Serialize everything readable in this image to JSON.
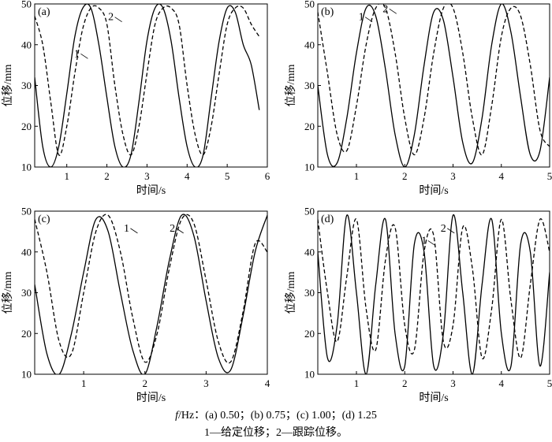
{
  "caption": {
    "line1_var": "f",
    "line1_rest": "/Hz：(a) 0.50；(b) 0.75；(c) 1.00；(d) 1.25",
    "line2": "1—给定位移；2—跟踪位移。"
  },
  "chart_data": [
    {
      "id": "a",
      "type": "line",
      "panel_label": "(a)",
      "xlabel": "时间/s",
      "ylabel": "位移/mm",
      "xlim": [
        0.2,
        6.0
      ],
      "ylim": [
        10,
        50
      ],
      "xticks": [
        1,
        2,
        3,
        4,
        5,
        6
      ],
      "yticks": [
        10,
        20,
        30,
        40,
        50
      ],
      "series": [
        {
          "name": "1",
          "style": "solid",
          "x": [
            0.2,
            0.4,
            0.6,
            0.8,
            1.0,
            1.2,
            1.4,
            1.6,
            1.8,
            2.0,
            2.2,
            2.4,
            2.6,
            2.8,
            3.0,
            3.2,
            3.4,
            3.6,
            3.8,
            4.0,
            4.2,
            4.4,
            4.6,
            4.8,
            5.0,
            5.2,
            5.4,
            5.6,
            5.8
          ],
          "y": [
            32,
            15,
            10,
            15,
            28,
            42,
            49,
            49,
            40,
            27,
            15,
            10,
            13,
            26,
            41,
            49,
            49,
            41,
            27,
            15,
            10,
            13,
            27,
            41,
            49,
            48,
            40,
            35,
            24
          ]
        },
        {
          "name": "2",
          "style": "dashed",
          "x": [
            0.2,
            0.4,
            0.6,
            0.8,
            1.0,
            1.2,
            1.4,
            1.6,
            1.8,
            2.0,
            2.2,
            2.4,
            2.6,
            2.8,
            3.0,
            3.2,
            3.4,
            3.6,
            3.8,
            4.0,
            4.2,
            4.4,
            4.6,
            4.8,
            5.0,
            5.2,
            5.4,
            5.6,
            5.8
          ],
          "y": [
            47,
            40,
            26,
            13,
            20,
            33,
            44,
            49,
            49,
            45,
            30,
            18,
            13,
            20,
            33,
            45,
            49,
            49,
            45,
            30,
            18,
            13,
            20,
            33,
            45,
            49,
            49,
            45,
            42
          ]
        }
      ],
      "annotations": [
        {
          "text": "1",
          "x": 1.25,
          "y": 37
        },
        {
          "text": "2",
          "x": 2.1,
          "y": 46
        }
      ]
    },
    {
      "id": "b",
      "type": "line",
      "panel_label": "(b)",
      "xlabel": "时间/s",
      "ylabel": "位移/mm",
      "xlim": [
        0.2,
        5.0
      ],
      "ylim": [
        10,
        50
      ],
      "xticks": [
        1,
        2,
        3,
        4,
        5
      ],
      "yticks": [
        10,
        20,
        30,
        40,
        50
      ],
      "series": [
        {
          "name": "1",
          "style": "solid",
          "x": [
            0.2,
            0.4,
            0.6,
            0.8,
            1.0,
            1.2,
            1.4,
            1.6,
            1.8,
            2.0,
            2.2,
            2.4,
            2.6,
            2.8,
            3.0,
            3.2,
            3.4,
            3.6,
            3.8,
            4.0,
            4.2,
            4.4,
            4.6,
            4.8,
            5.0
          ],
          "y": [
            30,
            13,
            11,
            22,
            38,
            49,
            47,
            34,
            18,
            10,
            18,
            35,
            48,
            46,
            32,
            16,
            11,
            22,
            40,
            50,
            43,
            27,
            13,
            14,
            32
          ]
        },
        {
          "name": "2",
          "style": "dashed",
          "x": [
            0.2,
            0.4,
            0.6,
            0.8,
            1.0,
            1.2,
            1.4,
            1.6,
            1.8,
            2.0,
            2.2,
            2.4,
            2.6,
            2.8,
            3.0,
            3.2,
            3.4,
            3.6,
            3.8,
            4.0,
            4.2,
            4.4,
            4.6,
            4.8,
            5.0
          ],
          "y": [
            48,
            33,
            18,
            14,
            25,
            40,
            49,
            49,
            38,
            22,
            13,
            22,
            38,
            49,
            49,
            38,
            22,
            13,
            25,
            42,
            49,
            47,
            35,
            19,
            15
          ]
        }
      ],
      "annotations": [
        {
          "text": "1",
          "x": 1.1,
          "y": 46
        },
        {
          "text": "2",
          "x": 1.6,
          "y": 48
        }
      ]
    },
    {
      "id": "c",
      "type": "line",
      "panel_label": "(c)",
      "xlabel": "时间/s",
      "ylabel": "位移/mm",
      "xlim": [
        0.2,
        4.0
      ],
      "ylim": [
        10,
        50
      ],
      "xticks": [
        1,
        2,
        3,
        4
      ],
      "yticks": [
        10,
        20,
        30,
        40,
        50
      ],
      "series": [
        {
          "name": "1",
          "style": "solid",
          "x": [
            0.2,
            0.4,
            0.6,
            0.8,
            1.0,
            1.2,
            1.4,
            1.6,
            1.8,
            2.0,
            2.2,
            2.4,
            2.6,
            2.8,
            3.0,
            3.2,
            3.4,
            3.6,
            3.8,
            4.0
          ],
          "y": [
            32,
            15,
            10,
            20,
            35,
            48,
            45,
            30,
            16,
            10,
            22,
            38,
            49,
            44,
            28,
            14,
            11,
            24,
            40,
            49
          ]
        },
        {
          "name": "2",
          "style": "dashed",
          "x": [
            0.2,
            0.4,
            0.6,
            0.8,
            1.0,
            1.2,
            1.4,
            1.6,
            1.8,
            2.0,
            2.2,
            2.4,
            2.6,
            2.8,
            3.0,
            3.2,
            3.4,
            3.6,
            3.8,
            4.0
          ],
          "y": [
            48,
            35,
            18,
            15,
            30,
            45,
            49,
            40,
            24,
            13,
            20,
            36,
            48,
            47,
            33,
            18,
            13,
            25,
            42,
            40
          ]
        }
      ],
      "annotations": [
        {
          "text": "1",
          "x": 1.7,
          "y": 45
        },
        {
          "text": "2",
          "x": 2.45,
          "y": 45
        }
      ]
    },
    {
      "id": "d",
      "type": "line",
      "panel_label": "(d)",
      "xlabel": "时间/s",
      "ylabel": "位移/mm",
      "xlim": [
        0.2,
        5.0
      ],
      "ylim": [
        10,
        50
      ],
      "xticks": [
        1,
        2,
        3,
        4,
        5
      ],
      "yticks": [
        10,
        20,
        30,
        40,
        50
      ],
      "series": [
        {
          "name": "1",
          "style": "solid",
          "x": [
            0.2,
            0.4,
            0.6,
            0.8,
            1.0,
            1.2,
            1.4,
            1.6,
            1.8,
            2.0,
            2.2,
            2.4,
            2.6,
            2.8,
            3.0,
            3.2,
            3.4,
            3.6,
            3.8,
            4.0,
            4.2,
            4.4,
            4.6,
            4.8,
            5.0
          ],
          "y": [
            40,
            14,
            22,
            49,
            30,
            10,
            32,
            48,
            20,
            12,
            42,
            40,
            12,
            20,
            49,
            30,
            10,
            32,
            48,
            20,
            12,
            42,
            40,
            12,
            35
          ]
        },
        {
          "name": "2",
          "style": "dashed",
          "x": [
            0.2,
            0.4,
            0.6,
            0.8,
            1.0,
            1.2,
            1.4,
            1.6,
            1.8,
            2.0,
            2.2,
            2.4,
            2.6,
            2.8,
            3.0,
            3.2,
            3.4,
            3.6,
            3.8,
            4.0,
            4.2,
            4.4,
            4.6,
            4.8,
            5.0
          ],
          "y": [
            48,
            30,
            18,
            34,
            48,
            26,
            16,
            38,
            46,
            22,
            16,
            40,
            44,
            18,
            22,
            46,
            36,
            14,
            26,
            48,
            28,
            14,
            32,
            48,
            40
          ]
        }
      ],
      "annotations": [
        {
          "text": "1",
          "x": 2.4,
          "y": 42
        },
        {
          "text": "2",
          "x": 2.8,
          "y": 45
        }
      ]
    }
  ]
}
